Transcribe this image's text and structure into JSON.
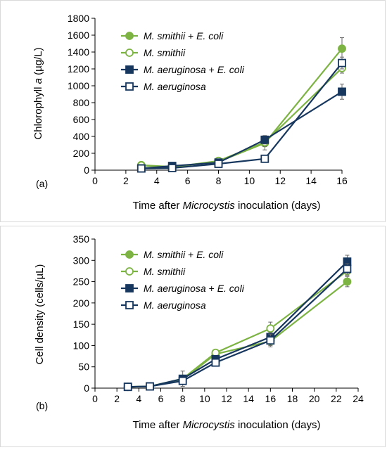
{
  "chart_data": [
    {
      "type": "line",
      "panel_label": "(a)",
      "xlabel_parts": [
        "Time after ",
        "Microcystis",
        " inoculation (days)"
      ],
      "ylabel_parts": [
        "Chlorophyll ",
        "a",
        " (µg/L)"
      ],
      "xlim": [
        0,
        16
      ],
      "xticks": [
        0,
        2,
        4,
        6,
        8,
        10,
        12,
        14,
        16
      ],
      "ylim": [
        0,
        1800
      ],
      "yticks": [
        0,
        200,
        400,
        600,
        800,
        1000,
        1200,
        1400,
        1600,
        1800
      ],
      "legend_position": "top-left",
      "series": [
        {
          "name_parts": [
            "M. smithii",
            " + ",
            "E. coli"
          ],
          "color": "#7cb342",
          "marker": "circle",
          "filled": true,
          "x": [
            3,
            5,
            8,
            11,
            16
          ],
          "y": [
            60,
            40,
            100,
            320,
            1440
          ],
          "err": [
            10,
            10,
            20,
            80,
            130
          ]
        },
        {
          "name_parts": [
            "M. smithii",
            "",
            ""
          ],
          "color": "#7cb342",
          "marker": "circle",
          "filled": false,
          "x": [
            3,
            5,
            8,
            11,
            16
          ],
          "y": [
            55,
            35,
            110,
            330,
            1210
          ],
          "err": [
            10,
            10,
            20,
            50,
            60
          ]
        },
        {
          "name_parts": [
            "M. aeruginosa",
            " + ",
            "E. coli"
          ],
          "color": "#17375e",
          "marker": "square",
          "filled": true,
          "x": [
            3,
            5,
            8,
            11,
            16
          ],
          "y": [
            20,
            50,
            90,
            360,
            930
          ],
          "err": [
            5,
            10,
            20,
            50,
            90
          ]
        },
        {
          "name_parts": [
            "M. aeruginosa",
            "",
            ""
          ],
          "color": "#17375e",
          "marker": "square",
          "filled": false,
          "x": [
            3,
            5,
            8,
            11,
            16
          ],
          "y": [
            20,
            25,
            75,
            135,
            1270
          ],
          "err": [
            5,
            5,
            10,
            20,
            70
          ]
        }
      ]
    },
    {
      "type": "line",
      "panel_label": "(b)",
      "xlabel_parts": [
        "Time after ",
        "Microcystis",
        " inoculation (days)"
      ],
      "ylabel_parts": [
        "Cell density (cells/µL)",
        "",
        ""
      ],
      "xlim": [
        0,
        24
      ],
      "xticks": [
        0,
        2,
        4,
        6,
        8,
        10,
        12,
        14,
        16,
        18,
        20,
        22,
        24
      ],
      "ylim": [
        0,
        350
      ],
      "yticks": [
        0,
        50,
        100,
        150,
        200,
        250,
        300,
        350
      ],
      "legend_position": "top-left",
      "series": [
        {
          "name_parts": [
            "M. smithii",
            " + ",
            "E. coli"
          ],
          "color": "#7cb342",
          "marker": "circle",
          "filled": true,
          "x": [
            3,
            5,
            8,
            11,
            16,
            23
          ],
          "y": [
            3,
            4,
            20,
            80,
            110,
            250
          ],
          "err": [
            1,
            1,
            5,
            5,
            10,
            12
          ]
        },
        {
          "name_parts": [
            "M. smithii",
            "",
            ""
          ],
          "color": "#7cb342",
          "marker": "circle",
          "filled": false,
          "x": [
            3,
            5,
            8,
            11,
            16,
            23
          ],
          "y": [
            3,
            4,
            22,
            83,
            140,
            275
          ],
          "err": [
            1,
            1,
            18,
            5,
            15,
            10
          ]
        },
        {
          "name_parts": [
            "M. aeruginosa",
            " + ",
            "E. coli"
          ],
          "color": "#17375e",
          "marker": "square",
          "filled": true,
          "x": [
            3,
            5,
            8,
            11,
            16,
            23
          ],
          "y": [
            3,
            4,
            22,
            68,
            120,
            297
          ],
          "err": [
            1,
            1,
            5,
            5,
            10,
            15
          ]
        },
        {
          "name_parts": [
            "M. aeruginosa",
            "",
            ""
          ],
          "color": "#17375e",
          "marker": "square",
          "filled": false,
          "x": [
            3,
            5,
            8,
            11,
            16,
            23
          ],
          "y": [
            3,
            4,
            17,
            60,
            112,
            280
          ],
          "err": [
            1,
            1,
            5,
            5,
            15,
            12
          ]
        }
      ]
    }
  ]
}
